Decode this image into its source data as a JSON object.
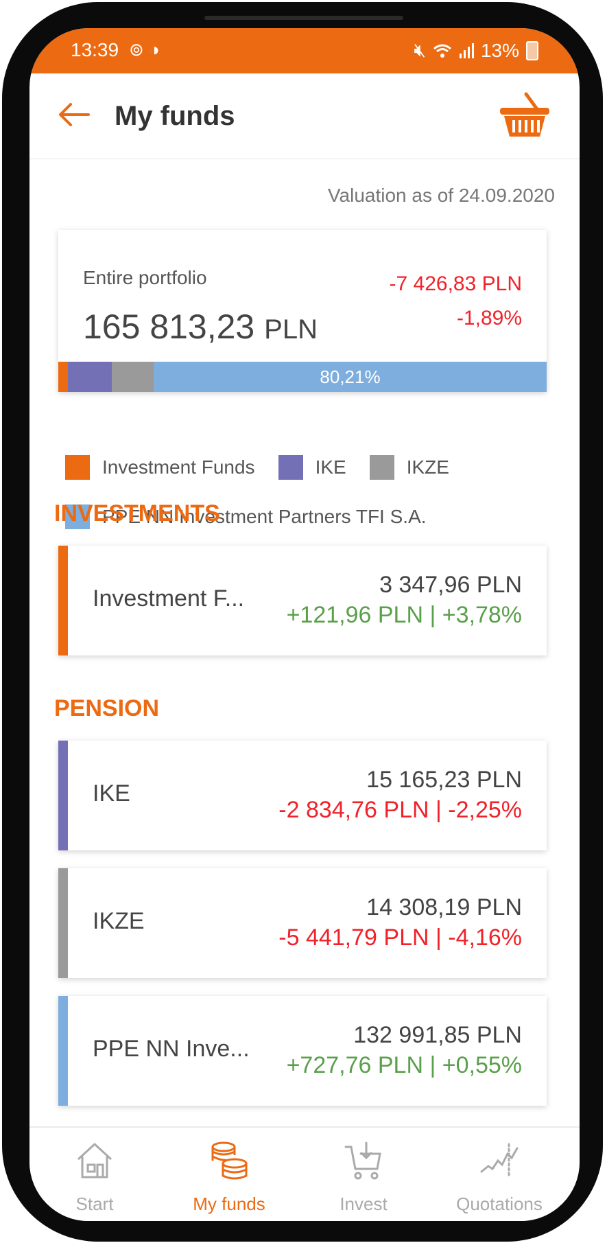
{
  "status_bar": {
    "time": "13:39",
    "battery": "13%"
  },
  "header": {
    "title": "My funds"
  },
  "valuation_label": "Valuation as of 24.09.2020",
  "portfolio": {
    "label": "Entire portfolio",
    "value": "165 813,23",
    "currency": "PLN",
    "change_amount": "-7 426,83 PLN",
    "change_percent": "-1,89%",
    "bar_label": "80,21%",
    "shares": [
      {
        "name": "Investment Funds",
        "fraction": 0.02,
        "color": "#ec6a12"
      },
      {
        "name": "IKE",
        "fraction": 0.09,
        "color": "#7470b6"
      },
      {
        "name": "IKZE",
        "fraction": 0.086,
        "color": "#9a9a9a"
      },
      {
        "name": "PPE NN Investment Partners TFI S.A.",
        "fraction": 0.8021,
        "color": "#7eaedd"
      }
    ]
  },
  "legend": [
    {
      "label": "Investment Funds",
      "color": "#ec6a12"
    },
    {
      "label": "IKE",
      "color": "#7470b6"
    },
    {
      "label": "IKZE",
      "color": "#9a9a9a"
    },
    {
      "label": "PPE NN Investment Partners TFI S.A.",
      "color": "#7eaedd"
    }
  ],
  "sections": {
    "investments": "INVESTMENTS",
    "pension": "PENSION"
  },
  "accounts": [
    {
      "name": "Investment F...",
      "amount": "3 347,96 PLN",
      "delta": "+121,96 PLN | +3,78%",
      "color": "#ec6a12",
      "trend": "up"
    },
    {
      "name": "IKE",
      "amount": "15 165,23 PLN",
      "delta": "-2 834,76 PLN | -2,25%",
      "color": "#7470b6",
      "trend": "down"
    },
    {
      "name": "IKZE",
      "amount": "14 308,19 PLN",
      "delta": "-5 441,79 PLN | -4,16%",
      "color": "#9a9a9a",
      "trend": "down"
    },
    {
      "name": "PPE NN Inve...",
      "amount": "132 991,85 PLN",
      "delta": "+727,76 PLN | +0,55%",
      "color": "#7eaedd",
      "trend": "up"
    }
  ],
  "nav": [
    {
      "label": "Start",
      "icon": "home-icon"
    },
    {
      "label": "My funds",
      "icon": "coins-icon",
      "active": true
    },
    {
      "label": "Invest",
      "icon": "cart-icon"
    },
    {
      "label": "Quotations",
      "icon": "chart-icon"
    }
  ]
}
